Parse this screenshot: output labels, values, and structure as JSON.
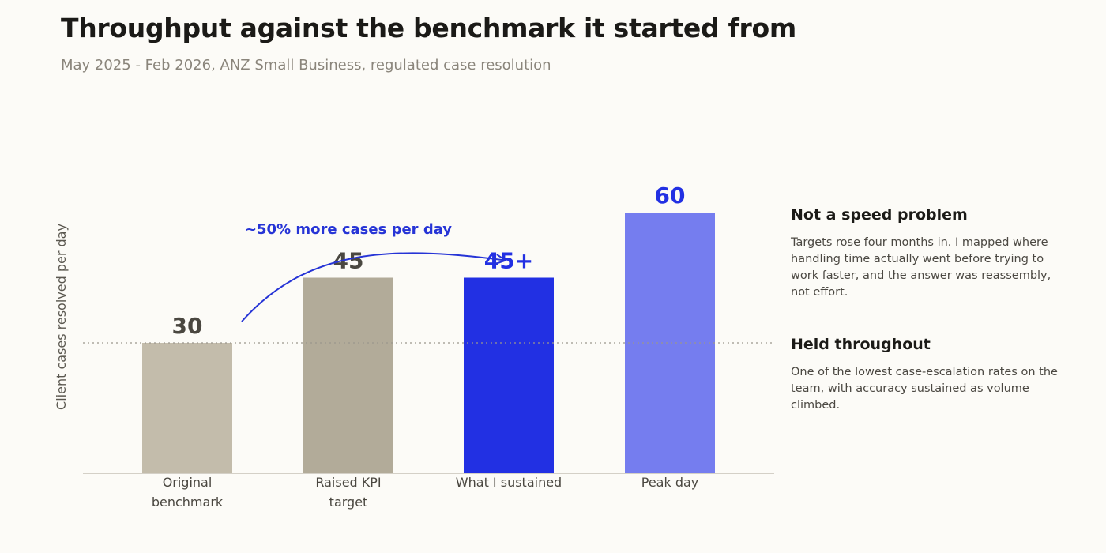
{
  "header": {
    "title": "Throughput against the benchmark it started from",
    "subtitle": "May 2025 - Feb 2026, ANZ Small Business, regulated case resolution"
  },
  "chart_data": {
    "type": "bar",
    "ylabel": "Client cases resolved per day",
    "xlabel": "",
    "ylim": [
      0,
      64
    ],
    "grid": false,
    "reference_line": {
      "value": 30,
      "style": "dotted"
    },
    "categories": [
      [
        "Original",
        "benchmark"
      ],
      [
        "Raised KPI",
        "target"
      ],
      [
        "What I sustained"
      ],
      [
        "Peak day"
      ]
    ],
    "values": [
      30,
      45,
      45,
      60
    ],
    "value_labels": [
      "30",
      "45",
      "45+",
      "60"
    ],
    "bar_colors": [
      "#c3bcab",
      "#b2ab99",
      "#2230e3",
      "#757def"
    ],
    "label_colors": [
      "#4a4740",
      "#4a4740",
      "#2230e3",
      "#2230e3"
    ],
    "annotation": {
      "text": "~50% more cases per day",
      "color": "#2634d6",
      "from_bar": 0,
      "to_bar": 2
    }
  },
  "notes": [
    {
      "heading": "Not a speed problem",
      "body": "Targets rose four months in. I mapped where handling time actually went before trying to work faster, and the answer was reassembly, not effort."
    },
    {
      "heading": "Held throughout",
      "body": "One of the lowest case-escalation rates on the team, with accuracy sustained as volume climbed."
    }
  ]
}
